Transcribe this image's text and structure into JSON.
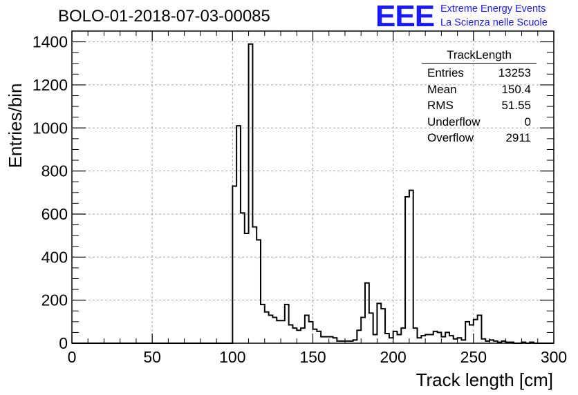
{
  "title": "BOLO-01-2018-07-03-00085",
  "logo": {
    "mark": "EEE",
    "line1": "Extreme Energy Events",
    "line2": "La Scienza nelle Scuole",
    "color": "#1a1aff"
  },
  "stats_box": {
    "title": "TrackLength",
    "rows": [
      {
        "label": "Entries",
        "value": "13253"
      },
      {
        "label": "Mean",
        "value": "150.4"
      },
      {
        "label": "RMS",
        "value": "51.55"
      },
      {
        "label": "Underflow",
        "value": "0"
      },
      {
        "label": "Overflow",
        "value": "2911"
      }
    ]
  },
  "chart_data": {
    "type": "histogram",
    "title": "BOLO-01-2018-07-03-00085",
    "xlabel": "Track length [cm]",
    "ylabel": "Entries/bin",
    "xlim": [
      0,
      300
    ],
    "ylim": [
      0,
      1450
    ],
    "grid": true,
    "bin_width": 2.5,
    "x_ticks": [
      0,
      50,
      100,
      150,
      200,
      250,
      300
    ],
    "y_ticks": [
      0,
      200,
      400,
      600,
      800,
      1000,
      1200,
      1400
    ],
    "bin_edges_start": 97.5,
    "bin_values": [
      0,
      730,
      1010,
      605,
      510,
      1390,
      540,
      480,
      180,
      145,
      130,
      120,
      105,
      105,
      180,
      85,
      70,
      60,
      70,
      130,
      100,
      65,
      55,
      30,
      30,
      30,
      25,
      10,
      10,
      10,
      10,
      15,
      60,
      120,
      280,
      140,
      40,
      185,
      160,
      45,
      25,
      55,
      40,
      70,
      680,
      710,
      70,
      25,
      35,
      40,
      40,
      55,
      50,
      30,
      50,
      35,
      20,
      25,
      15,
      100,
      85,
      110,
      130,
      20,
      10,
      15,
      10,
      5,
      10,
      5,
      5,
      0,
      0,
      5,
      0,
      5,
      0
    ]
  }
}
